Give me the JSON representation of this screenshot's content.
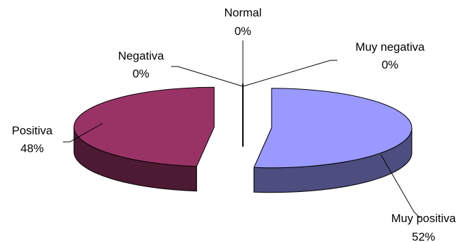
{
  "chart_data": {
    "type": "pie",
    "style": "3d-exploded",
    "slices": [
      {
        "name": "Muy positiva",
        "value": 52,
        "label": "52%",
        "color": "#9999ff",
        "side_color": "#4d4d80"
      },
      {
        "name": "Positiva",
        "value": 48,
        "label": "48%",
        "color": "#993366",
        "side_color": "#4d1a33"
      },
      {
        "name": "Negativa",
        "value": 0,
        "label": "0%",
        "color": "#ffffcc",
        "side_color": "#808066"
      },
      {
        "name": "Normal",
        "value": 0,
        "label": "0%",
        "color": "#ccffff",
        "side_color": "#668080"
      },
      {
        "name": "Muy negativa",
        "value": 0,
        "label": "0%",
        "color": "#660066",
        "side_color": "#330033"
      }
    ],
    "legend": "none"
  }
}
